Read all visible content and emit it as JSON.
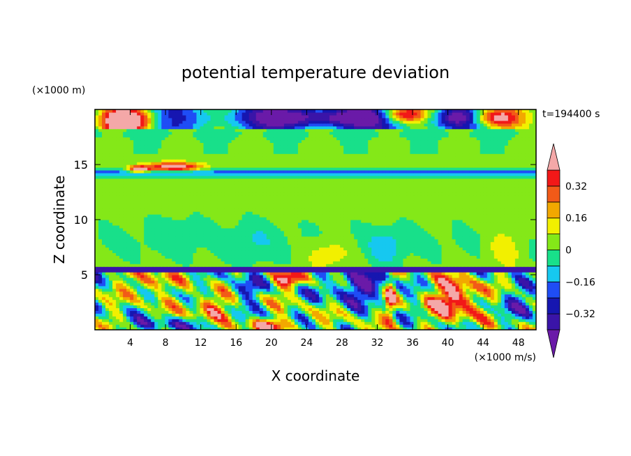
{
  "chart_data": {
    "type": "heatmap",
    "title": "potential temperature deviation",
    "xlabel": "X coordinate",
    "ylabel": "Z coordinate",
    "x_unit": "(×1000 m/s)",
    "y_unit": "(×1000 m)",
    "time_label": "t=194400 s",
    "xlim": [
      0,
      50
    ],
    "ylim": [
      0,
      20
    ],
    "x_ticks": [
      4,
      8,
      12,
      16,
      20,
      24,
      28,
      32,
      36,
      40,
      44,
      48
    ],
    "y_ticks": [
      5,
      10,
      15
    ],
    "colorbar": {
      "levels": [
        -0.4,
        -0.32,
        -0.24,
        -0.16,
        -0.08,
        0,
        0.08,
        0.16,
        0.24,
        0.32,
        0.4
      ],
      "labels": [
        "0.32",
        "0.16",
        "0",
        "−0.16",
        "−0.32"
      ],
      "label_values": [
        0.32,
        0.16,
        0,
        -0.16,
        -0.32
      ],
      "colors_low_to_high": [
        "#3a14a8",
        "#1616b0",
        "#1f4df5",
        "#16c8f0",
        "#18e08a",
        "#84e818",
        "#f2f000",
        "#f2a800",
        "#f25a18",
        "#f21818"
      ],
      "under_color": "#6a1aa8",
      "over_color": "#f4a8a8"
    }
  }
}
